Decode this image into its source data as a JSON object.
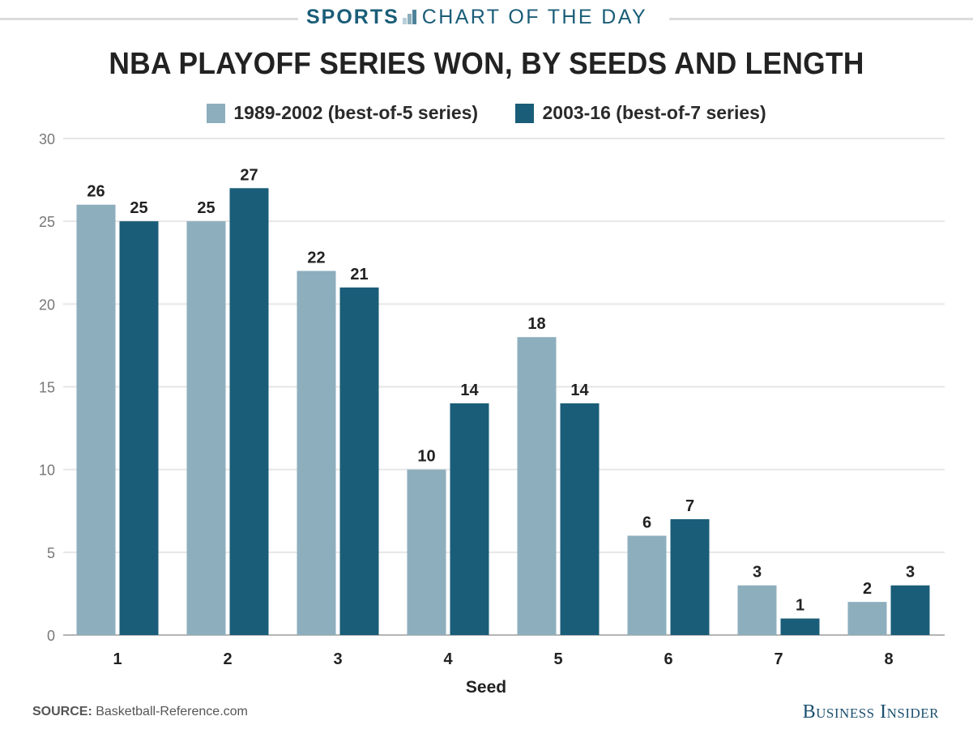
{
  "header": {
    "section": "SPORTS",
    "subtitle": "CHART OF THE DAY",
    "icon": "bar-chart-icon"
  },
  "footer": {
    "source_label": "SOURCE:",
    "source_value": "Basketball-Reference.com",
    "brand": "Business Insider"
  },
  "colors": {
    "series1": "#8daebd",
    "series2": "#1a5d78",
    "accent": "#1a5d78",
    "grid": "#e6e6e6",
    "axis": "#b5b5b5"
  },
  "chart_data": {
    "type": "bar",
    "title": "NBA PLAYOFF SERIES WON, BY SEEDS AND LENGTH",
    "xlabel": "Seed",
    "ylabel": "",
    "categories": [
      "1",
      "2",
      "3",
      "4",
      "5",
      "6",
      "7",
      "8"
    ],
    "series": [
      {
        "name": "1989-2002 (best-of-5 series)",
        "values": [
          26,
          25,
          22,
          10,
          18,
          6,
          3,
          2
        ]
      },
      {
        "name": "2003-16 (best-of-7 series)",
        "values": [
          25,
          27,
          21,
          14,
          14,
          7,
          1,
          3
        ]
      }
    ],
    "ylim": [
      0,
      30
    ],
    "yticks": [
      0,
      5,
      10,
      15,
      20,
      25,
      30
    ],
    "grid": true,
    "legend_position": "top-center",
    "data_labels": true
  }
}
